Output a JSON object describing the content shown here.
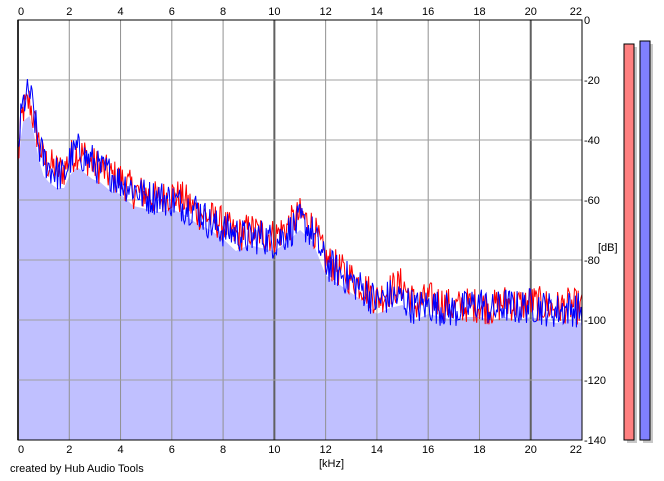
{
  "chart_data": {
    "type": "area",
    "xlabel": "[kHz]",
    "ylabel": "[dB]",
    "xlim": [
      0,
      22
    ],
    "ylim": [
      -140,
      0
    ],
    "x_ticks": [
      0,
      2,
      4,
      6,
      8,
      10,
      12,
      14,
      16,
      18,
      20,
      22
    ],
    "x_tick_labels": [
      "0",
      "2",
      "4",
      "6",
      "8",
      "10",
      "12",
      "14",
      "16",
      "18",
      "20",
      "22"
    ],
    "y_ticks": [
      0,
      -20,
      -40,
      -60,
      -80,
      -100,
      -120,
      -140
    ],
    "y_tick_labels": [
      "0",
      "-20",
      "-40",
      "-60",
      "-80",
      "-100",
      "-120",
      "-140"
    ],
    "grid": true,
    "series": [
      {
        "color": "#ff0000",
        "x": [
          0,
          0.1,
          0.2,
          0.3,
          0.45,
          0.6,
          0.8,
          1.0,
          1.2,
          1.5,
          1.8,
          2.0,
          2.3,
          2.6,
          2.9,
          3.2,
          3.6,
          4.0,
          4.5,
          5.0,
          5.5,
          6.0,
          6.5,
          7.0,
          7.5,
          8.0,
          8.5,
          9.0,
          9.5,
          10.0,
          10.5,
          11.0,
          11.5,
          12.0,
          12.5,
          13.0,
          13.5,
          14.0,
          14.5,
          15.0,
          15.5,
          16.0,
          16.5,
          17.0,
          17.5,
          18.0,
          18.5,
          19.0,
          19.5,
          20.0,
          20.5,
          21.0,
          21.5,
          22.0
        ],
        "values": [
          -48,
          -36,
          -30,
          -29,
          -27,
          -33,
          -40,
          -47,
          -48,
          -50,
          -50,
          -46,
          -44,
          -45,
          -48,
          -49,
          -52,
          -53,
          -57,
          -58,
          -60,
          -58,
          -60,
          -64,
          -66,
          -68,
          -72,
          -70,
          -71,
          -72,
          -69,
          -65,
          -69,
          -80,
          -83,
          -86,
          -89,
          -93,
          -90,
          -88,
          -95,
          -93,
          -94,
          -96,
          -95,
          -95,
          -96,
          -94,
          -95,
          -94,
          -95,
          -96,
          -95,
          -96
        ]
      },
      {
        "color": "#0000ff",
        "x": [
          0,
          0.1,
          0.2,
          0.3,
          0.45,
          0.6,
          0.8,
          1.0,
          1.2,
          1.5,
          1.8,
          2.0,
          2.3,
          2.6,
          2.9,
          3.2,
          3.6,
          4.0,
          4.5,
          5.0,
          5.5,
          6.0,
          6.5,
          7.0,
          7.5,
          8.0,
          8.5,
          9.0,
          9.5,
          10.0,
          10.5,
          11.0,
          11.5,
          12.0,
          12.5,
          13.0,
          13.5,
          14.0,
          14.5,
          15.0,
          15.5,
          16.0,
          16.5,
          17.0,
          17.5,
          18.0,
          18.5,
          19.0,
          19.5,
          20.0,
          20.5,
          21.0,
          21.5,
          22.0
        ],
        "values": [
          -44,
          -34,
          -28,
          -26,
          -24,
          -30,
          -42,
          -46,
          -49,
          -51,
          -52,
          -47,
          -43,
          -46,
          -47,
          -50,
          -51,
          -54,
          -56,
          -59,
          -59,
          -60,
          -62,
          -63,
          -68,
          -70,
          -71,
          -73,
          -72,
          -74,
          -71,
          -67,
          -71,
          -81,
          -84,
          -87,
          -90,
          -94,
          -92,
          -93,
          -96,
          -95,
          -96,
          -97,
          -96,
          -94,
          -97,
          -95,
          -96,
          -95,
          -96,
          -97,
          -96,
          -97
        ]
      },
      {
        "color": "#c0c0ff",
        "x": [
          0,
          0.1,
          0.2,
          0.3,
          0.45,
          0.6,
          0.8,
          1.0,
          1.2,
          1.5,
          1.8,
          2.0,
          2.3,
          2.6,
          2.9,
          3.2,
          3.6,
          4.0,
          4.5,
          5.0,
          5.5,
          6.0,
          6.5,
          7.0,
          7.5,
          8.0,
          8.5,
          9.0,
          9.5,
          10.0,
          10.5,
          11.0,
          11.5,
          12.0,
          12.5,
          13.0,
          13.5,
          14.0,
          14.5,
          15.0,
          15.5,
          16.0,
          16.5,
          17.0,
          17.5,
          18.0,
          18.5,
          19.0,
          19.5,
          20.0,
          20.5,
          21.0,
          21.5,
          22.0
        ],
        "values": [
          -52,
          -40,
          -34,
          -33,
          -32,
          -37,
          -46,
          -52,
          -54,
          -56,
          -56,
          -52,
          -49,
          -51,
          -53,
          -54,
          -57,
          -58,
          -62,
          -63,
          -64,
          -63,
          -65,
          -68,
          -70,
          -73,
          -77,
          -75,
          -76,
          -77,
          -74,
          -70,
          -74,
          -85,
          -88,
          -91,
          -94,
          -98,
          -96,
          -95,
          -100,
          -98,
          -99,
          -100,
          -99,
          -99,
          -100,
          -99,
          -100,
          -99,
          -100,
          -101,
          -100,
          -101
        ]
      }
    ],
    "meters": [
      {
        "color": "#ff8080",
        "level_db": -8
      },
      {
        "color": "#8080ff",
        "level_db": -7
      }
    ]
  },
  "credit": "created by Hub Audio Tools"
}
